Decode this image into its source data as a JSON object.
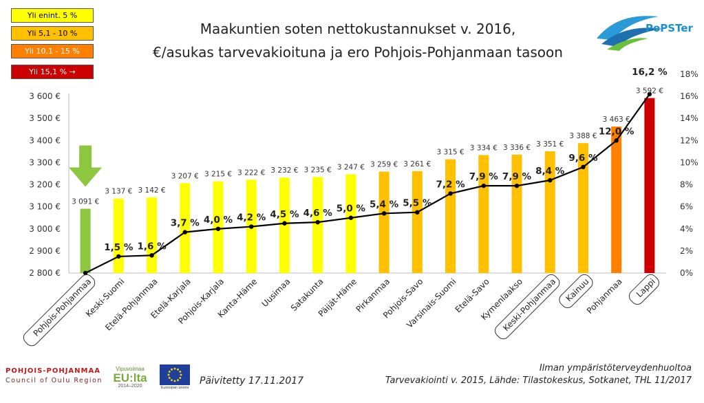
{
  "title_line1": "Maakuntien soten nettokustannukset v. 2016,",
  "title_line2": "€/asukas tarvevakioituna ja ero Pohjois-Pohjanmaan tasoon",
  "legend": [
    {
      "label": "Yli enint. 5 %",
      "color": "#ffff00"
    },
    {
      "label": "Yli 5,1 - 10 %",
      "color": "#ffc000"
    },
    {
      "label": "Yli 10,1 - 15 %",
      "color": "#ff8000"
    },
    {
      "label": "Yli 15,1 % →",
      "color": "#cc0000"
    }
  ],
  "logos": {
    "popster": "PoPSTer",
    "region_line1": "POHJOIS-POHJANMAA",
    "region_line2": "Council of Oulu Region",
    "vipuvoimaa": "Vipuvoimaa",
    "eulta": "EU:lta",
    "years": "2014–2020",
    "eu_caption": "Euroopan unioni"
  },
  "footer": {
    "updated": "Päivitetty 17.11.2017",
    "note1": "Ilman ympäristöterveydenhuoltoa",
    "note2": "Tarvevakiointi v. 2015, Lähde: Tilastokeskus, Sotkanet, THL 11/2017"
  },
  "chart_data": {
    "type": "bar",
    "categories": [
      "Pohjois-Pohjanmaa",
      "Keski-Suomi",
      "Etelä-Pohjanmaa",
      "Etelä-Karjala",
      "Pohjois-Karjala",
      "Kanta-Häme",
      "Uusimaa",
      "Satakunta",
      "Päijät-Häme",
      "Pirkanmaa",
      "Pohjois-Savo",
      "Varsinais-Suomi",
      "Etelä-Savo",
      "Kymenlaakso",
      "Keski-Pohjanmaa",
      "Kainuu",
      "Pohjanmaa",
      "Lappi"
    ],
    "boxed_categories": [
      "Pohjois-Pohjanmaa",
      "Keski-Pohjanmaa",
      "Kainuu",
      "Lappi"
    ],
    "series": [
      {
        "type": "bar",
        "values": [
          3091,
          3137,
          3142,
          3207,
          3215,
          3222,
          3232,
          3235,
          3247,
          3259,
          3261,
          3315,
          3334,
          3336,
          3351,
          3388,
          3463,
          3592
        ],
        "value_labels": [
          "3 091 €",
          "3 137 €",
          "3 142 €",
          "3 207 €",
          "3 215 €",
          "3 222 €",
          "3 232 €",
          "3 235 €",
          "3 247 €",
          "3 259 €",
          "3 261 €",
          "3 315 €",
          "3 334 €",
          "3 336 €",
          "3 351 €",
          "3 388 €",
          "3 463 €",
          "3 592 €"
        ],
        "colors": [
          "#8dc63f",
          "#ffff00",
          "#ffff00",
          "#ffff00",
          "#ffff00",
          "#ffff00",
          "#ffff00",
          "#ffff00",
          "#ffff00",
          "#ffc000",
          "#ffc000",
          "#ffc000",
          "#ffc000",
          "#ffc000",
          "#ffc000",
          "#ffc000",
          "#ff8000",
          "#cc0000"
        ]
      },
      {
        "type": "line",
        "axis": "right",
        "values": [
          0,
          1.5,
          1.6,
          3.7,
          4.0,
          4.2,
          4.5,
          4.6,
          5.0,
          5.4,
          5.5,
          7.2,
          7.9,
          7.9,
          8.4,
          9.6,
          12.0,
          16.2
        ],
        "value_labels": [
          "",
          "1,5 %",
          "1,6 %",
          "3,7 %",
          "4,0 %",
          "4,2 %",
          "4,5 %",
          "4,6 %",
          "5,0 %",
          "5,4 %",
          "5,5 %",
          "7,2 %",
          "7,9 %",
          "7,9 %",
          "8,4 %",
          "9,6 %",
          "12,0 %",
          "16,2 %"
        ],
        "color": "#000000"
      }
    ],
    "ylim": [
      2800,
      3600
    ],
    "y_ticks": [
      2800,
      2900,
      3000,
      3100,
      3200,
      3300,
      3400,
      3500,
      3600
    ],
    "y_tick_labels": [
      "2 800 €",
      "2 900 €",
      "3 000 €",
      "3 100 €",
      "3 200 €",
      "3 300 €",
      "3 400 €",
      "3 500 €",
      "3 600 €"
    ],
    "y2lim": [
      0,
      18
    ],
    "y2_ticks": [
      0,
      2,
      4,
      6,
      8,
      10,
      12,
      14,
      16,
      18
    ],
    "y2_tick_labels": [
      "0%",
      "2%",
      "4%",
      "6%",
      "8%",
      "10%",
      "12%",
      "14%",
      "16%",
      "18%"
    ],
    "grid": false,
    "marker_color": "#8dc63f"
  }
}
